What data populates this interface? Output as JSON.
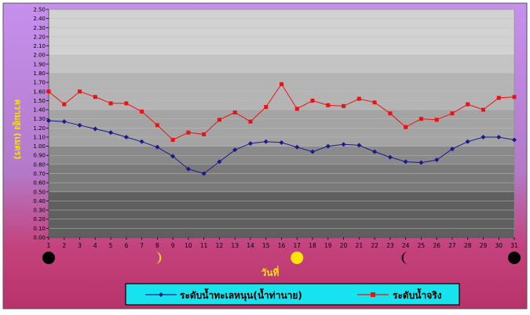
{
  "chart_data": {
    "type": "line",
    "xlabel": "วันที่",
    "ylabel": "ความสูง (เมตร)",
    "x": [
      1,
      2,
      3,
      4,
      5,
      6,
      7,
      8,
      9,
      10,
      11,
      12,
      13,
      14,
      15,
      16,
      17,
      18,
      19,
      20,
      21,
      22,
      23,
      24,
      25,
      26,
      27,
      28,
      29,
      30,
      31
    ],
    "ylim": [
      0,
      2.5
    ],
    "ytick_step": 0.1,
    "grid": true,
    "legend_position": "bottom",
    "series": [
      {
        "name": "ระดับน้ำทะเลหนุน(น้ำท่านาย)",
        "color": "#1a1a8c",
        "marker": "diamond",
        "values": [
          1.28,
          1.27,
          1.23,
          1.19,
          1.15,
          1.1,
          1.05,
          0.99,
          0.89,
          0.75,
          0.7,
          0.83,
          0.96,
          1.03,
          1.05,
          1.04,
          0.99,
          0.94,
          1.0,
          1.02,
          1.01,
          0.94,
          0.88,
          0.83,
          0.82,
          0.85,
          0.97,
          1.05,
          1.1,
          1.1,
          1.07
        ]
      },
      {
        "name": "ระดับน้ำจริง",
        "color": "#ee1111",
        "marker": "square",
        "values": [
          1.6,
          1.46,
          1.6,
          1.54,
          1.47,
          1.47,
          1.38,
          1.23,
          1.07,
          1.15,
          1.13,
          1.29,
          1.37,
          1.27,
          1.43,
          1.68,
          1.41,
          1.5,
          1.45,
          1.44,
          1.52,
          1.48,
          1.36,
          1.21,
          1.3,
          1.29,
          1.36,
          1.46,
          1.4,
          1.53,
          1.54
        ]
      }
    ],
    "moon_phases": [
      {
        "day": 1,
        "phase": "new-moon"
      },
      {
        "day": 8,
        "phase": "first-quarter"
      },
      {
        "day": 17,
        "phase": "full-moon"
      },
      {
        "day": 24,
        "phase": "last-quarter"
      },
      {
        "day": 31,
        "phase": "new-moon"
      }
    ]
  }
}
